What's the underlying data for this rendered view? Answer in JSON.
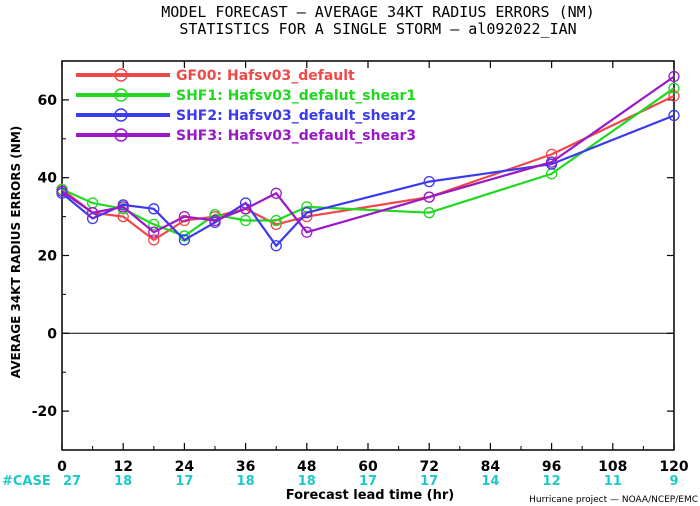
{
  "chart_data": {
    "type": "line",
    "title": "MODEL FORECAST — AVERAGE 34KT RADIUS ERRORS (NM)",
    "subtitle": "STATISTICS FOR A SINGLE STORM — al092022_IAN",
    "xlabel": "Forecast lead time (hr)",
    "ylabel": "AVERAGE 34KT RADIUS ERRORS (NM)",
    "xlim": [
      0,
      120
    ],
    "ylim": [
      -30,
      70
    ],
    "x_ticks": [
      0,
      12,
      24,
      36,
      48,
      60,
      72,
      84,
      96,
      108,
      120
    ],
    "y_ticks": [
      -20,
      0,
      20,
      40,
      60
    ],
    "grid": false,
    "zero_line": true,
    "legend_position": "top-left",
    "case_label": "#CASE",
    "case_counts": [
      {
        "x": 0,
        "n": "27"
      },
      {
        "x": 12,
        "n": "18"
      },
      {
        "x": 24,
        "n": "17"
      },
      {
        "x": 36,
        "n": "18"
      },
      {
        "x": 48,
        "n": "18"
      },
      {
        "x": 60,
        "n": "17"
      },
      {
        "x": 72,
        "n": "17"
      },
      {
        "x": 84,
        "n": "14"
      },
      {
        "x": 96,
        "n": "12"
      },
      {
        "x": 108,
        "n": "11"
      },
      {
        "x": 120,
        "n": "9"
      }
    ],
    "credit": "Hurricane project — NOAA/NCEP/EMC",
    "series": [
      {
        "name": "GF00: Hafsv03_default",
        "color": "#f04848",
        "points": [
          [
            0,
            37
          ],
          [
            6,
            31
          ],
          [
            12,
            30
          ],
          [
            18,
            24
          ],
          [
            24,
            29
          ],
          [
            30,
            30
          ],
          [
            36,
            32
          ],
          [
            42,
            28
          ],
          [
            48,
            30
          ],
          [
            72,
            35
          ],
          [
            96,
            46
          ],
          [
            120,
            61
          ]
        ]
      },
      {
        "name": "SHF1: Hafsv03_defalut_shear1",
        "color": "#20d820",
        "points": [
          [
            0,
            37
          ],
          [
            6,
            33.5
          ],
          [
            12,
            32
          ],
          [
            18,
            28
          ],
          [
            24,
            25
          ],
          [
            30,
            30.5
          ],
          [
            36,
            29
          ],
          [
            42,
            29
          ],
          [
            48,
            32.5
          ],
          [
            72,
            31
          ],
          [
            96,
            41
          ],
          [
            120,
            63
          ]
        ]
      },
      {
        "name": "SHF2: Hafsv03_default_shear2",
        "color": "#3a3aee",
        "points": [
          [
            0,
            36
          ],
          [
            6,
            29.5
          ],
          [
            12,
            33
          ],
          [
            18,
            32
          ],
          [
            24,
            24
          ],
          [
            30,
            28.5
          ],
          [
            36,
            33.5
          ],
          [
            42,
            22.5
          ],
          [
            48,
            31
          ],
          [
            72,
            39
          ],
          [
            96,
            43.5
          ],
          [
            120,
            56
          ]
        ]
      },
      {
        "name": "SHF3: Hafsv03_default_shear3",
        "color": "#9b18c8",
        "points": [
          [
            0,
            36.5
          ],
          [
            6,
            31
          ],
          [
            12,
            32.5
          ],
          [
            18,
            26
          ],
          [
            24,
            30
          ],
          [
            30,
            29
          ],
          [
            36,
            32
          ],
          [
            42,
            36
          ],
          [
            48,
            26
          ],
          [
            72,
            35
          ],
          [
            96,
            44
          ],
          [
            120,
            66
          ]
        ]
      }
    ]
  }
}
